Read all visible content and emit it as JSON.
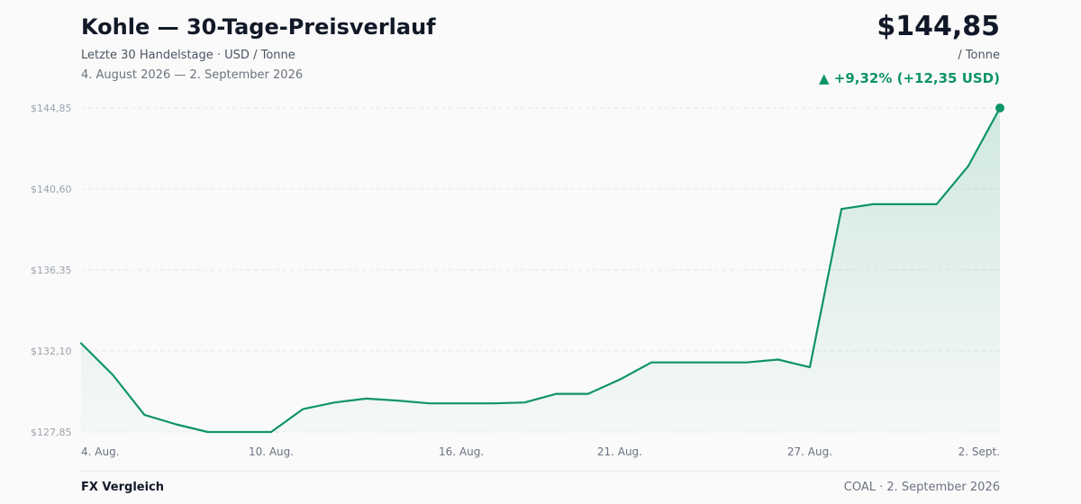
{
  "header": {
    "title": "Kohle — 30-Tage-Preisverlauf",
    "subtitle": "Letzte 30 Handelstage · USD / Tonne",
    "date_range": "4. August 2026 — 2. September 2026",
    "price": "$144,85",
    "unit": "/ Tonne",
    "change": "▲ +9,32% (+12,35 USD)"
  },
  "footer": {
    "brand": "FX Vergleich",
    "source": "COAL · 2. September 2026"
  },
  "colors": {
    "line": "#0f9467",
    "positive": "#0f9467",
    "grid": "#e5e7eb",
    "tick_label": "#9ca3af",
    "x_label": "#6b7280"
  },
  "chart_data": {
    "type": "area",
    "x": [
      "4. Aug.",
      "5. Aug.",
      "6. Aug.",
      "7. Aug.",
      "8. Aug.",
      "9. Aug.",
      "10. Aug.",
      "11. Aug.",
      "12. Aug.",
      "13. Aug.",
      "14. Aug.",
      "15. Aug.",
      "16. Aug.",
      "17. Aug.",
      "18. Aug.",
      "19. Aug.",
      "20. Aug.",
      "21. Aug.",
      "22. Aug.",
      "23. Aug.",
      "24. Aug.",
      "25. Aug.",
      "26. Aug.",
      "27. Aug.",
      "28. Aug.",
      "29. Aug.",
      "30. Aug.",
      "31. Aug.",
      "1. Sept.",
      "2. Sept."
    ],
    "values": [
      132.5,
      130.85,
      128.75,
      128.25,
      127.85,
      127.85,
      127.85,
      129.05,
      129.4,
      129.6,
      129.5,
      129.35,
      129.35,
      129.35,
      129.4,
      129.85,
      129.85,
      130.6,
      131.5,
      131.5,
      131.5,
      131.5,
      131.65,
      131.25,
      139.55,
      139.8,
      139.8,
      139.8,
      141.8,
      144.85
    ],
    "y_ticks": [
      "$144,85",
      "$140,60",
      "$136,35",
      "$132,10",
      "$127,85"
    ],
    "y_tick_values": [
      144.85,
      140.6,
      136.35,
      132.1,
      127.85
    ],
    "x_ticks": [
      {
        "label": "4. Aug.",
        "index": 0
      },
      {
        "label": "10. Aug.",
        "index": 6
      },
      {
        "label": "16. Aug.",
        "index": 12
      },
      {
        "label": "21. Aug.",
        "index": 17
      },
      {
        "label": "27. Aug.",
        "index": 23
      },
      {
        "label": "2. Sept.",
        "index": 29
      }
    ],
    "ylim": [
      127.85,
      144.85
    ],
    "grid": true
  }
}
